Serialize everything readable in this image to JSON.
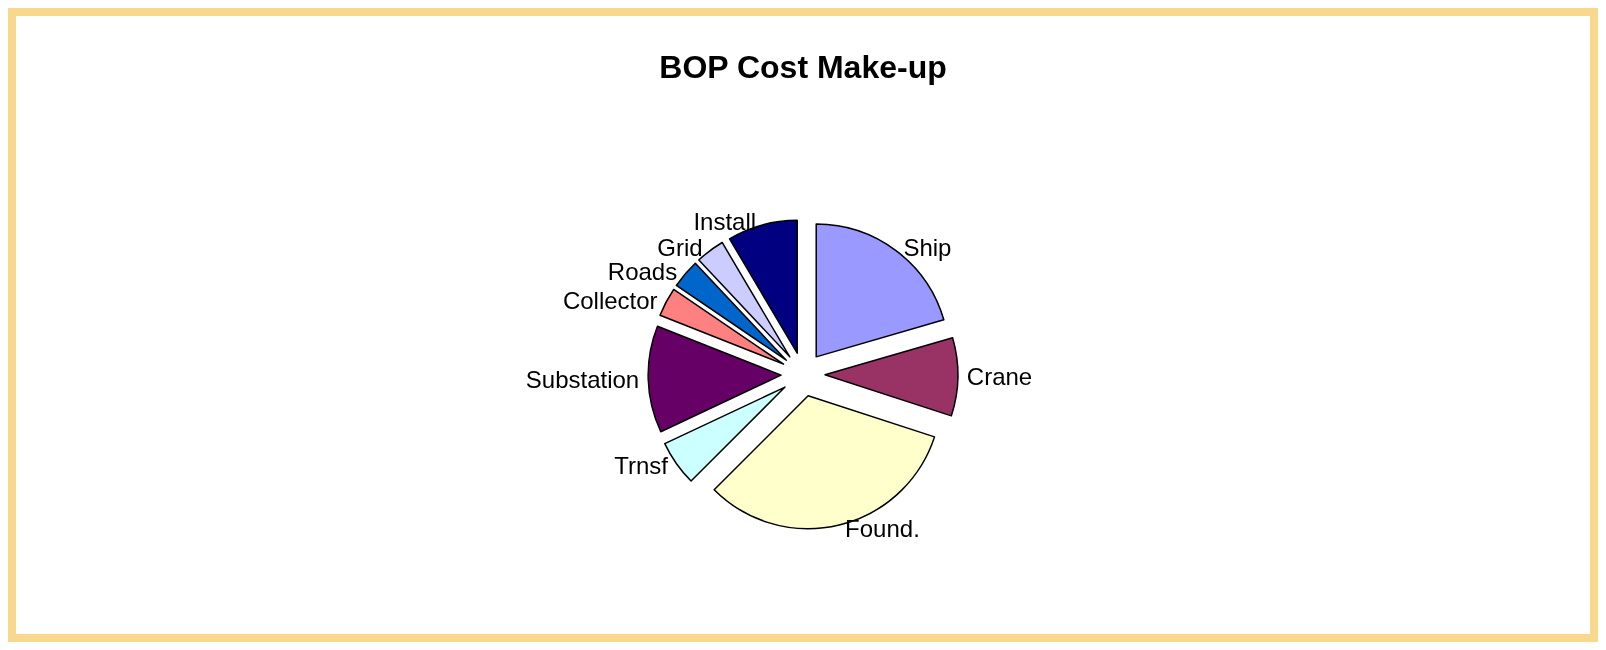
{
  "chart_data": {
    "type": "pie",
    "title": "BOP Cost Make-up",
    "categories": [
      "Ship",
      "Crane",
      "Found.",
      "Trnsf",
      "Substation",
      "Collector",
      "Roads",
      "Grid",
      "Install"
    ],
    "values": [
      20.5,
      9.5,
      32.5,
      5.5,
      13,
      3.5,
      3.5,
      3.5,
      8.5
    ],
    "colors": [
      "#9999ff",
      "#993366",
      "#ffffcc",
      "#ccffff",
      "#660066",
      "#ff8080",
      "#0066cc",
      "#ccccff",
      "#000080"
    ],
    "legend": false
  }
}
